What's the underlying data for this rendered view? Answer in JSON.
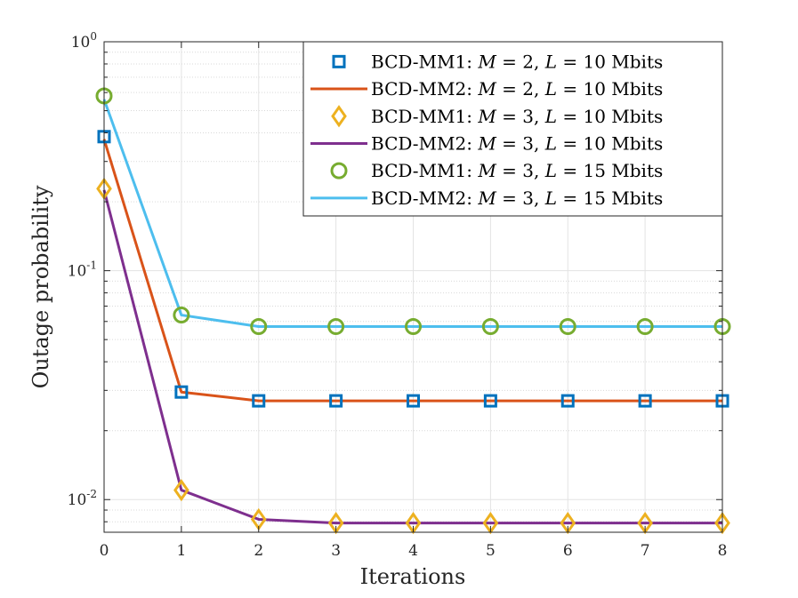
{
  "chart_data": {
    "type": "line",
    "title": "",
    "xlabel": "Iterations",
    "ylabel": "Outage probability",
    "xscale": "linear",
    "yscale": "log",
    "xlim": [
      0,
      8
    ],
    "ylim": [
      0.0072,
      1
    ],
    "grid": true,
    "minor_grid": true,
    "legend_position": "top-right",
    "x": [
      0,
      1,
      2,
      3,
      4,
      5,
      6,
      7,
      8
    ],
    "x_tick_labels": [
      "0",
      "1",
      "2",
      "3",
      "4",
      "5",
      "6",
      "7",
      "8"
    ],
    "y_ticks": [
      {
        "value": 1,
        "base": "10",
        "exp": "0"
      },
      {
        "value": 0.1,
        "base": "10",
        "exp": "-1"
      },
      {
        "value": 0.01,
        "base": "10",
        "exp": "-2"
      }
    ],
    "series": [
      {
        "name": "BCD-MM1: M = 2, L = 10 Mbits",
        "legend": {
          "prefix": "BCD-MM1: ",
          "m": "2",
          "l": "10",
          "unit": " Mbits"
        },
        "style": "markers",
        "marker": "square",
        "color": "#0072BD",
        "values": [
          0.385,
          0.0295,
          0.027,
          0.027,
          0.027,
          0.027,
          0.027,
          0.027,
          0.027
        ]
      },
      {
        "name": "BCD-MM2: M = 2, L = 10 Mbits",
        "legend": {
          "prefix": "BCD-MM2: ",
          "m": "2",
          "l": "10",
          "unit": " Mbits"
        },
        "style": "line",
        "marker": "none",
        "color": "#D95319",
        "values": [
          0.375,
          0.0295,
          0.027,
          0.027,
          0.027,
          0.027,
          0.027,
          0.027,
          0.027
        ]
      },
      {
        "name": "BCD-MM1: M = 3, L = 10 Mbits",
        "legend": {
          "prefix": "BCD-MM1: ",
          "m": "3",
          "l": "10",
          "unit": " Mbits"
        },
        "style": "markers",
        "marker": "diamond",
        "color": "#EDB120",
        "values": [
          0.228,
          0.011,
          0.0082,
          0.0079,
          0.0079,
          0.0079,
          0.0079,
          0.0079,
          0.0079
        ]
      },
      {
        "name": "BCD-MM2: M = 3, L = 10 Mbits",
        "legend": {
          "prefix": "BCD-MM2: ",
          "m": "3",
          "l": "10",
          "unit": " Mbits"
        },
        "style": "line",
        "marker": "none",
        "color": "#7E2F8E",
        "values": [
          0.225,
          0.011,
          0.0082,
          0.0079,
          0.0079,
          0.0079,
          0.0079,
          0.0079,
          0.0079
        ]
      },
      {
        "name": "BCD-MM1: M = 3, L = 15 Mbits",
        "legend": {
          "prefix": "BCD-MM1: ",
          "m": "3",
          "l": "15",
          "unit": " Mbits"
        },
        "style": "markers",
        "marker": "circle",
        "color": "#77AC30",
        "values": [
          0.58,
          0.064,
          0.057,
          0.057,
          0.057,
          0.057,
          0.057,
          0.057,
          0.057
        ]
      },
      {
        "name": "BCD-MM2: M = 3, L = 15 Mbits",
        "legend": {
          "prefix": "BCD-MM2: ",
          "m": "3",
          "l": "15",
          "unit": " Mbits"
        },
        "style": "line",
        "marker": "none",
        "color": "#4DBEEE",
        "values": [
          0.56,
          0.064,
          0.057,
          0.057,
          0.057,
          0.057,
          0.057,
          0.057,
          0.057
        ]
      }
    ]
  }
}
